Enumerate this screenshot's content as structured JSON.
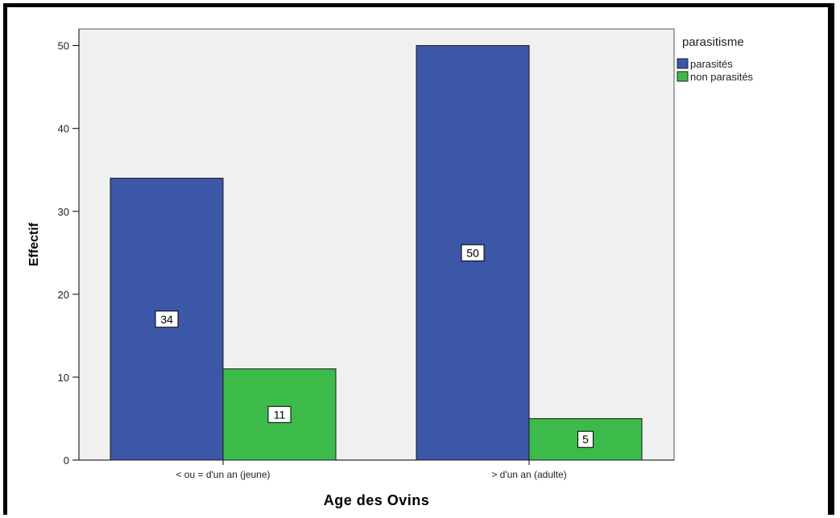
{
  "chart_data": {
    "type": "bar",
    "categories": [
      "< ou = d'un an (jeune)",
      "> d'un an (adulte)"
    ],
    "series": [
      {
        "name": "parasités",
        "values": [
          34,
          50
        ],
        "color": "#3c56a8"
      },
      {
        "name": "non parasités",
        "values": [
          11,
          5
        ],
        "color": "#3dbb4a"
      }
    ],
    "xlabel": "Age des Ovins",
    "ylabel": "Effectif",
    "ylim": [
      0,
      52
    ],
    "yticks": [
      0,
      10,
      20,
      30,
      40,
      50
    ],
    "legend": {
      "title": "parasitisme",
      "position": "top-right"
    },
    "grid": false,
    "plot_background": "#f0f0f0",
    "data_labels": true
  }
}
